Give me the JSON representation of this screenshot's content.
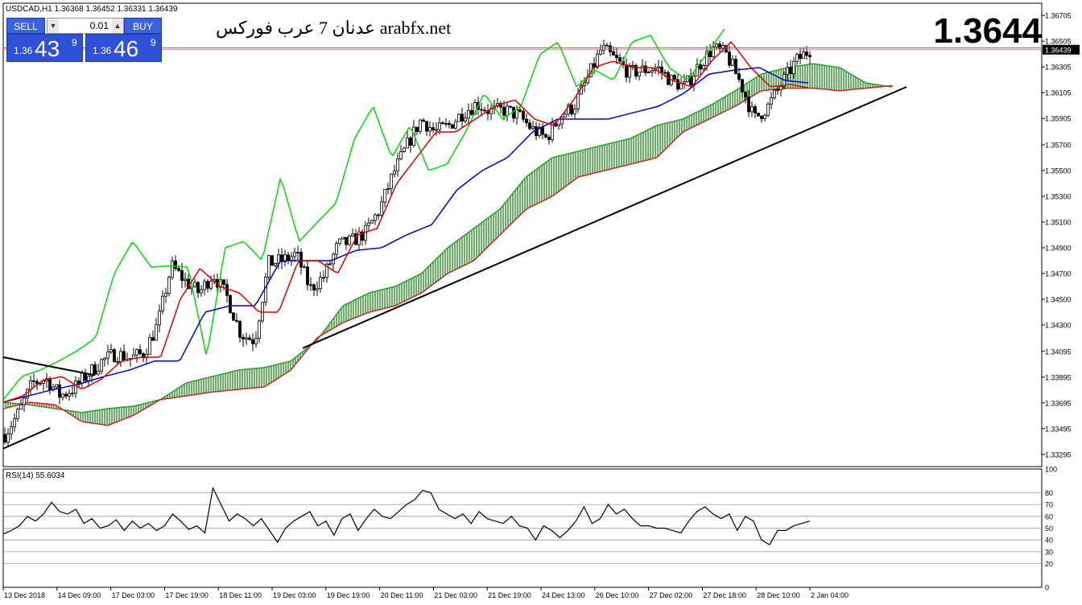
{
  "header": {
    "symbol_info": "USDCAD,H1  1.36368 1.36452 1.36331 1.36439",
    "watermark": "عدنان 7 عرب فوركس arabfx.net",
    "big_price": "1.3644"
  },
  "trade_panel": {
    "sell_label": "SELL",
    "buy_label": "BUY",
    "lot": "0.01",
    "sell_small": "1.36",
    "sell_big": "43",
    "sell_sup": "9",
    "buy_small": "1.36",
    "buy_big": "46",
    "buy_sup": "9"
  },
  "rsi_label": "RSI(14) 55.6034",
  "colors": {
    "tenkan": "#e00000",
    "kijun": "#0000cc",
    "chikou": "#00dd00",
    "cloud_bull": "#008000",
    "cloud_bear": "#e00000",
    "candle": "#000000",
    "bid_line": "#ff4000",
    "trendline": "#000000"
  },
  "chart_data": [
    {
      "type": "candlestick",
      "title": "USDCAD,H1",
      "indicators": [
        "Ichimoku",
        "trendline"
      ],
      "ylim": [
        1.332,
        1.368
      ],
      "y_ticks": [
        "1.36705",
        "1.36505",
        "1.36305",
        "1.36105",
        "1.35905",
        "1.35700",
        "1.35500",
        "1.35300",
        "1.35100",
        "1.34900",
        "1.34700",
        "1.34500",
        "1.34300",
        "1.34095",
        "1.33895",
        "1.33695",
        "1.33495",
        "1.33295"
      ],
      "x_ticks": [
        "13 Dec 2018",
        "14 Dec 09:00",
        "17 Dec 03:00",
        "17 Dec 19:00",
        "18 Dec 11:00",
        "19 Dec 03:00",
        "19 Dec 19:00",
        "20 Dec 11:00",
        "21 Dec 03:00",
        "21 Dec 19:00",
        "24 Dec 13:00",
        "26 Dec 10:00",
        "27 Dec 02:00",
        "27 Dec 18:00",
        "28 Dec 10:00",
        "2 Jan 04:00"
      ],
      "last_price": "1.36439",
      "close_anchors": [
        1.3345,
        1.3362,
        1.3385,
        1.3388,
        1.3375,
        1.3381,
        1.3392,
        1.3402,
        1.3408,
        1.3404,
        1.3408,
        1.343,
        1.3476,
        1.3464,
        1.3455,
        1.347,
        1.3452,
        1.3423,
        1.3418,
        1.3478,
        1.348,
        1.3485,
        1.3458,
        1.3468,
        1.3492,
        1.3495,
        1.3502,
        1.352,
        1.3548,
        1.357,
        1.359,
        1.358,
        1.3585,
        1.3595,
        1.3602,
        1.3596,
        1.3597,
        1.3593,
        1.3582,
        1.3575,
        1.3592,
        1.36,
        1.3622,
        1.3645,
        1.3636,
        1.3626,
        1.3628,
        1.363,
        1.362,
        1.3615,
        1.3632,
        1.3645,
        1.364,
        1.3618,
        1.359,
        1.36,
        1.3618,
        1.3635,
        1.3644
      ],
      "tenkan_anchors": [
        1.337,
        1.3375,
        1.3387,
        1.339,
        1.338,
        1.3388,
        1.3402,
        1.3405,
        1.3405,
        1.345,
        1.3474,
        1.346,
        1.3455,
        1.344,
        1.344,
        1.348,
        1.348,
        1.347,
        1.35,
        1.3505,
        1.354,
        1.356,
        1.358,
        1.358,
        1.359,
        1.36,
        1.3605,
        1.359,
        1.3585,
        1.3605,
        1.363,
        1.3635,
        1.363,
        1.363,
        1.362,
        1.3615,
        1.3635,
        1.365,
        1.363,
        1.3615,
        1.3617,
        1.3614
      ],
      "kijun_anchors": [
        1.337,
        1.3375,
        1.338,
        1.3384,
        1.339,
        1.3395,
        1.3402,
        1.3402,
        1.344,
        1.3445,
        1.3445,
        1.348,
        1.348,
        1.348,
        1.3488,
        1.349,
        1.35,
        1.3508,
        1.3535,
        1.355,
        1.356,
        1.358,
        1.359,
        1.359,
        1.359,
        1.3595,
        1.36,
        1.361,
        1.3625,
        1.3628,
        1.363,
        1.362,
        1.3618
      ],
      "chikou_anchors": [
        1.3372,
        1.339,
        1.3395,
        1.3402,
        1.341,
        1.342,
        1.347,
        1.3495,
        1.3475,
        1.3476,
        1.3475,
        1.3405,
        1.349,
        1.3495,
        1.348,
        1.3545,
        1.3495,
        1.351,
        1.3525,
        1.3575,
        1.36,
        1.356,
        1.3585,
        1.355,
        1.3555,
        1.358,
        1.361,
        1.359,
        1.36,
        1.364,
        1.365,
        1.3615,
        1.3628,
        1.362,
        1.365,
        1.3655,
        1.363,
        1.362,
        1.364,
        1.366
      ],
      "senkou_a_anchors": [
        1.337,
        1.3368,
        1.3365,
        1.3362,
        1.3365,
        1.3367,
        1.3372,
        1.3385,
        1.339,
        1.3395,
        1.3397,
        1.3402,
        1.3418,
        1.3445,
        1.3455,
        1.346,
        1.347,
        1.349,
        1.3505,
        1.352,
        1.3545,
        1.356,
        1.3565,
        1.357,
        1.3575,
        1.3585,
        1.359,
        1.36,
        1.3612,
        1.3625,
        1.363,
        1.3633,
        1.363,
        1.3618,
        1.3615
      ],
      "senkou_b_anchors": [
        1.3365,
        1.337,
        1.3368,
        1.3355,
        1.3352,
        1.336,
        1.3372,
        1.3375,
        1.3378,
        1.338,
        1.3382,
        1.3395,
        1.342,
        1.3432,
        1.344,
        1.3445,
        1.3455,
        1.347,
        1.348,
        1.35,
        1.352,
        1.353,
        1.3545,
        1.355,
        1.3555,
        1.356,
        1.358,
        1.359,
        1.36,
        1.3612,
        1.3614,
        1.3614,
        1.3612,
        1.3614,
        1.3616
      ]
    },
    {
      "type": "line",
      "title": "RSI(14) 55.6034",
      "ylim": [
        0,
        100
      ],
      "y_ticks": [
        "100",
        "80",
        "70",
        "60",
        "50",
        "40",
        "30",
        "20",
        "0"
      ],
      "levels": [
        80,
        70,
        60,
        50,
        40,
        30,
        20
      ],
      "values": [
        45,
        48,
        52,
        60,
        56,
        62,
        72,
        64,
        62,
        66,
        54,
        58,
        50,
        52,
        57,
        48,
        56,
        50,
        54,
        48,
        52,
        62,
        56,
        49,
        52,
        46,
        84,
        70,
        56,
        62,
        58,
        52,
        58,
        48,
        38,
        50,
        56,
        60,
        64,
        52,
        56,
        44,
        58,
        62,
        48,
        58,
        66,
        60,
        58,
        64,
        70,
        74,
        82,
        80,
        66,
        62,
        58,
        62,
        54,
        64,
        58,
        56,
        54,
        60,
        52,
        50,
        40,
        52,
        48,
        42,
        48,
        56,
        68,
        54,
        58,
        70,
        62,
        66,
        58,
        52,
        52,
        50,
        50,
        48,
        46,
        56,
        64,
        68,
        62,
        58,
        62,
        48,
        60,
        56,
        40,
        36,
        48,
        48,
        52,
        54,
        56
      ]
    }
  ]
}
